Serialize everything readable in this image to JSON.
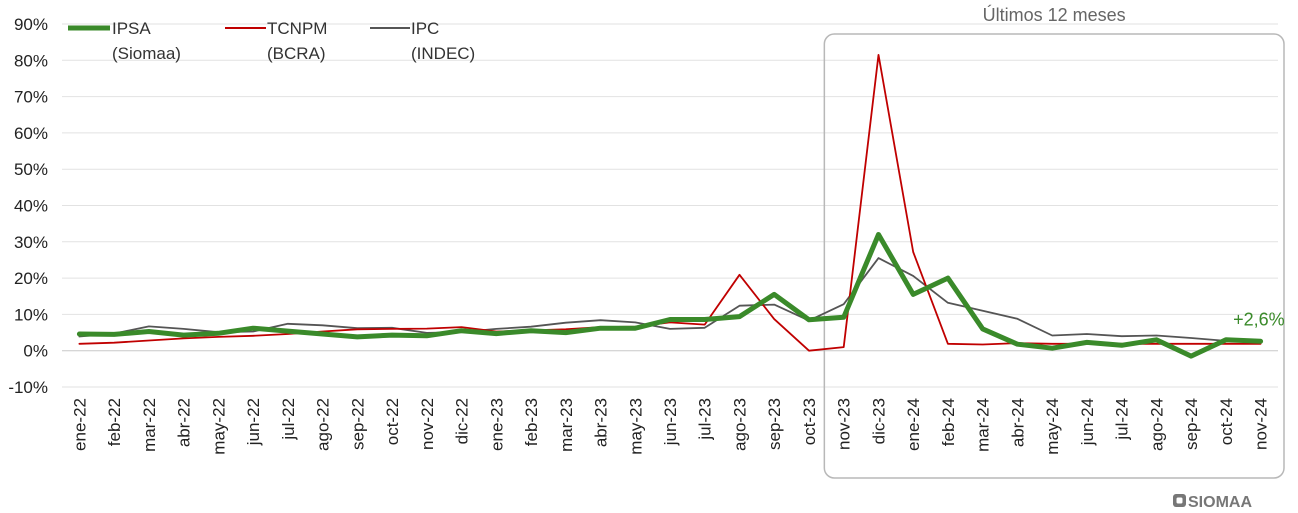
{
  "chart_data": {
    "type": "line",
    "x": [
      "ene-22",
      "feb-22",
      "mar-22",
      "abr-22",
      "may-22",
      "jun-22",
      "jul-22",
      "ago-22",
      "sep-22",
      "oct-22",
      "nov-22",
      "dic-22",
      "ene-23",
      "feb-23",
      "mar-23",
      "abr-23",
      "may-23",
      "jun-23",
      "jul-23",
      "ago-23",
      "sep-23",
      "oct-23",
      "nov-23",
      "dic-23",
      "ene-24",
      "feb-24",
      "mar-24",
      "abr-24",
      "may-24",
      "jun-24",
      "jul-24",
      "ago-24",
      "sep-24",
      "oct-24",
      "nov-24"
    ],
    "series": [
      {
        "name": "IPSA",
        "name_line2": "(Siomaa)",
        "color": "#3a8a2a",
        "values": [
          4.6,
          4.5,
          5.3,
          4.3,
          4.8,
          6.2,
          5.4,
          4.6,
          3.8,
          4.3,
          4.1,
          5.5,
          4.7,
          5.5,
          5.0,
          6.2,
          6.2,
          8.6,
          8.6,
          9.4,
          15.5,
          8.5,
          9.2,
          32.0,
          15.5,
          20.0,
          6.0,
          1.8,
          0.7,
          2.3,
          1.5,
          3.0,
          -1.5,
          3.0,
          2.6
        ]
      },
      {
        "name": "TCNPM",
        "name_line2": "(BCRA)",
        "color": "#c00000",
        "values": [
          1.9,
          2.2,
          2.8,
          3.4,
          3.8,
          4.1,
          4.6,
          5.3,
          5.9,
          6.0,
          6.1,
          6.5,
          5.3,
          5.6,
          5.9,
          6.5,
          6.6,
          7.8,
          7.2,
          20.9,
          8.7,
          0.0,
          1.0,
          81.5,
          27.2,
          1.9,
          1.7,
          2.1,
          1.9,
          1.9,
          1.9,
          1.9,
          1.9,
          1.9,
          1.9
        ]
      },
      {
        "name": "IPC",
        "name_line2": "(INDEC)",
        "color": "#555555",
        "values": [
          3.9,
          4.7,
          6.7,
          6.0,
          5.1,
          5.3,
          7.4,
          7.0,
          6.2,
          6.3,
          4.9,
          5.1,
          6.0,
          6.6,
          7.7,
          8.4,
          7.8,
          6.0,
          6.3,
          12.4,
          12.7,
          8.3,
          12.8,
          25.5,
          20.6,
          13.2,
          11.0,
          8.8,
          4.2,
          4.6,
          4.0,
          4.2,
          3.5,
          2.7,
          2.4
        ]
      }
    ],
    "y_ticks": [
      "90%",
      "80%",
      "70%",
      "60%",
      "50%",
      "40%",
      "30%",
      "20%",
      "10%",
      "0%",
      "-10%"
    ],
    "ylim": [
      -10,
      90
    ],
    "grid": true,
    "legend_placement": "top-left",
    "highlight_box": {
      "title": "Últimos 12 meses",
      "from": "nov-23",
      "to": "nov-24"
    },
    "annotation": {
      "text": "+2,6%",
      "at": "nov-24",
      "color": "#3a8a2a"
    }
  },
  "brand": {
    "logo_text": "SIOMAA"
  }
}
